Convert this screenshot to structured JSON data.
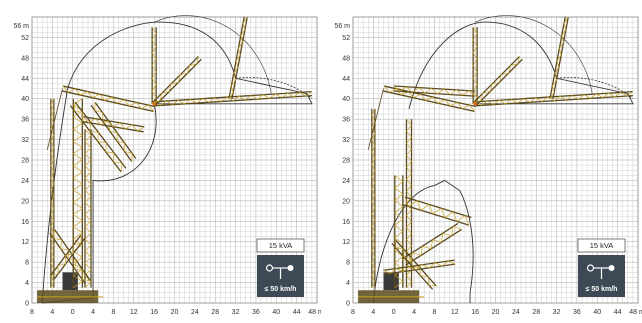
{
  "diagrams": [
    {
      "y_unit": "56 m",
      "x_unit": "48 m",
      "y_ticks": [
        "0",
        "4",
        "8",
        "12",
        "16",
        "20",
        "24",
        "28",
        "32",
        "36",
        "40",
        "44",
        "48",
        "52"
      ],
      "x_ticks": [
        "8",
        "4",
        "0",
        "4",
        "8",
        "12",
        "16",
        "20",
        "24",
        "28",
        "32",
        "36",
        "40",
        "44"
      ],
      "power_label": "15 kVA",
      "wind_label": "≤ 50 km/h",
      "wind_icon": "wind-limit-icon",
      "configuration": "tower-up"
    },
    {
      "y_unit": "56 m",
      "x_unit": "48 m",
      "y_ticks": [
        "0",
        "4",
        "8",
        "12",
        "16",
        "20",
        "24",
        "28",
        "32",
        "36",
        "40",
        "44",
        "48",
        "52"
      ],
      "x_ticks": [
        "8",
        "4",
        "0",
        "4",
        "8",
        "12",
        "16",
        "20",
        "24",
        "28",
        "32",
        "36",
        "40",
        "44"
      ],
      "power_label": "15 kVA",
      "wind_label": "≤ 50 km/h",
      "wind_icon": "wind-limit-icon",
      "configuration": "tower-folded"
    }
  ],
  "colors": {
    "grid_minor": "#cfcfcf",
    "grid_major": "#a8a8a8",
    "boom": "#5a4a1c",
    "boom_accent": "#c9a227",
    "envelope": "#333333",
    "badge_bg": "#3d4a55"
  }
}
